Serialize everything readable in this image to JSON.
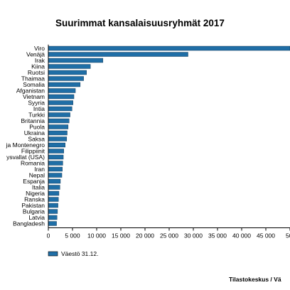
{
  "chart_data": {
    "type": "bar",
    "orientation": "horizontal",
    "title": "Suurimmat kansalaisuusryhmät 2017",
    "categories": [
      "Viro",
      "Venäjä",
      "Irak",
      "Kiina",
      "Ruotsi",
      "Thaimaa",
      "Somalia",
      "Afganistan",
      "Vietnam",
      "Syyria",
      "Intia",
      "Turkki",
      "Britannia",
      "Puola",
      "Ukraina",
      "Saksa",
      "ja Montenegro",
      "Filippiinit",
      "ysvallat (USA)",
      "Romania",
      "Iran",
      "Nepal",
      "Espanja",
      "Italia",
      "Nigeria",
      "Ranska",
      "Pakistan",
      "Bulgaria",
      "Latvia",
      "Bangladesh"
    ],
    "series": [
      {
        "name": "Väestö 31.12.",
        "color": "#1f6ea6",
        "values": [
          50000,
          28900,
          11300,
          8700,
          7900,
          7300,
          6600,
          5600,
          5300,
          5100,
          4900,
          4500,
          4300,
          4100,
          3900,
          3800,
          3500,
          3200,
          3100,
          3000,
          2900,
          2800,
          2500,
          2400,
          2200,
          2100,
          2000,
          1900,
          1800,
          1700
        ]
      }
    ],
    "x_ticks": [
      "0",
      "5 000",
      "10 000",
      "15 000",
      "20 000",
      "25 000",
      "30 000",
      "35 000",
      "40 000",
      "45 000",
      "50"
    ],
    "xlim": [
      0,
      50000
    ],
    "grid": false,
    "legend_position": "bottom-left",
    "source": "Tilastokeskus / Vä"
  }
}
